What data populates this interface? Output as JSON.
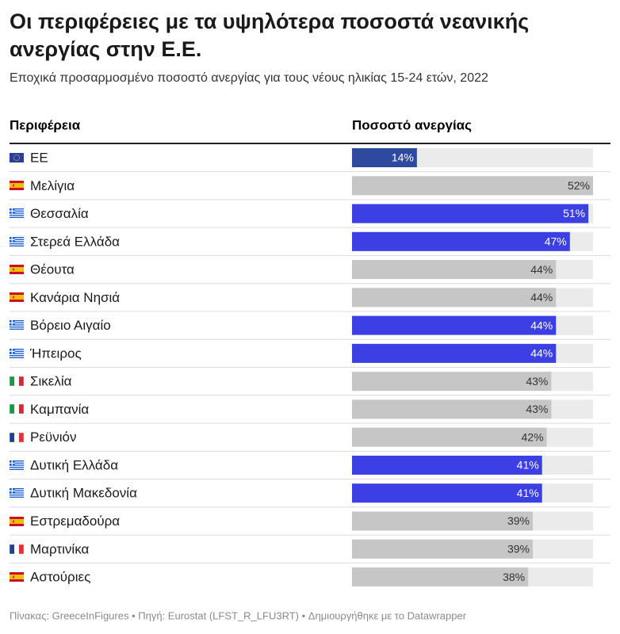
{
  "chart_data": {
    "type": "bar",
    "title": "Οι περιφέρειες με τα υψηλότερα ποσοστά νεανικής ανεργίας στην Ε.Ε.",
    "subtitle": "Εποχικά προσαρμοσμένο ποσοστό ανεργίας για τους νέους ηλικίας 15-24 ετών, 2022",
    "column_headers": [
      "Περιφέρεια",
      "Ποσοστό ανεργίας"
    ],
    "categories": [
      "ΕΕ",
      "Μελίγια",
      "Θεσσαλία",
      "Στερεά Ελλάδα",
      "Θέουτα",
      "Κανάρια Νησιά",
      "Βόρειο Αιγαίο",
      "Ήπειρος",
      "Σικελία",
      "Καμπανία",
      "Ρεϋνιόν",
      "Δυτική Ελλάδα",
      "Δυτική Μακεδονία",
      "Εστρεμαδούρα",
      "Μαρτινίκα",
      "Αστούριες"
    ],
    "values": [
      14,
      52,
      51,
      47,
      44,
      44,
      44,
      44,
      43,
      43,
      42,
      41,
      41,
      39,
      39,
      38
    ],
    "value_labels": [
      "14%",
      "52%",
      "51%",
      "47%",
      "44%",
      "44%",
      "44%",
      "44%",
      "43%",
      "43%",
      "42%",
      "41%",
      "41%",
      "39%",
      "39%",
      "38%"
    ],
    "colors": [
      "#2e4a9e",
      "#c6c6c6",
      "#3c3fe3",
      "#3c3fe3",
      "#c6c6c6",
      "#c6c6c6",
      "#3c3fe3",
      "#3c3fe3",
      "#c6c6c6",
      "#c6c6c6",
      "#c6c6c6",
      "#3c3fe3",
      "#3c3fe3",
      "#c6c6c6",
      "#c6c6c6",
      "#c6c6c6"
    ],
    "xlim": [
      0,
      52
    ],
    "footer": "Πίνακας: GreeceInFigures • Πηγή: Eurostat (LFST_R_LFU3RT)  • Δημιουργήθηκε με το Datawrapper"
  }
}
